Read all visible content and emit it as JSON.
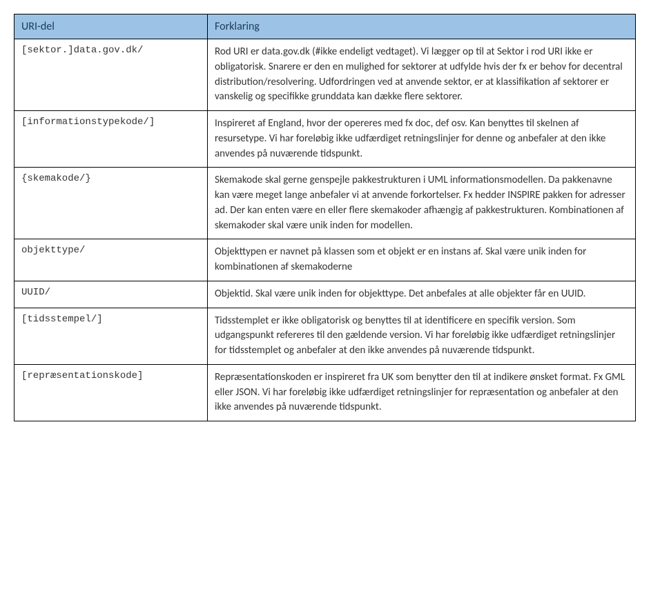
{
  "table": {
    "headers": {
      "col1": "URI-del",
      "col2": "Forklaring"
    },
    "rows": [
      {
        "code": "[sektor.]data.gov.dk/",
        "expl": "Rod URI er data.gov.dk (#ikke endeligt vedtaget). Vi lægger op til at Sektor i rod URI ikke er obligatorisk. Snarere er den en mulighed for sektorer at udfylde hvis der fx er behov for decentral distribution/resolvering. Udfordringen ved at anvende sektor, er at klassifikation af sektorer er vanskelig og specifikke grunddata kan dække flere sektorer."
      },
      {
        "code": "[informationstypekode/]",
        "expl": "Inspireret af England, hvor der opereres med fx doc, def osv. Kan benyttes til skelnen af resursetype. Vi har foreløbig ikke udfærdiget retningslinjer for denne og anbefaler at den ikke anvendes på nuværende tidspunkt."
      },
      {
        "code": "{skemakode/}",
        "expl": "Skemakode skal gerne genspejle pakkestrukturen i UML informationsmodellen. Da pakkenavne kan være meget lange anbefaler vi at anvende forkortelser. Fx hedder INSPIRE pakken for adresser ad. Der kan enten være en eller flere skemakoder afhængig af pakkestrukturen. Kombinationen af skemakoder skal være unik inden for modellen."
      },
      {
        "code": "objekttype/",
        "expl": "Objekttypen er navnet på klassen som et objekt er en instans af. Skal være unik inden for kombinationen af skemakoderne"
      },
      {
        "code": "UUID/",
        "expl": "Objektid. Skal være unik inden for objekttype. Det anbefales at alle objekter får en UUID."
      },
      {
        "code": "[tidsstempel/]",
        "expl": "Tidsstemplet er ikke obligatorisk og benyttes til at identificere en specifik version. Som udgangspunkt refereres til den gældende version. Vi har foreløbig ikke udfærdiget retningslinjer for tidsstemplet og anbefaler at den ikke anvendes på nuværende tidspunkt."
      },
      {
        "code": "[repræsentationskode]",
        "expl": "Repræsentationskoden er inspireret fra UK som benytter den til at indikere ønsket format. Fx GML eller JSON. Vi har foreløbig ikke udfærdiget retningslinjer for repræsentation og anbefaler at den ikke anvendes på nuværende tidspunkt."
      }
    ]
  },
  "colors": {
    "header_bg": "#9cc3e6",
    "header_text": "#1f3a57",
    "border": "#000000",
    "body_text": "#333333"
  }
}
